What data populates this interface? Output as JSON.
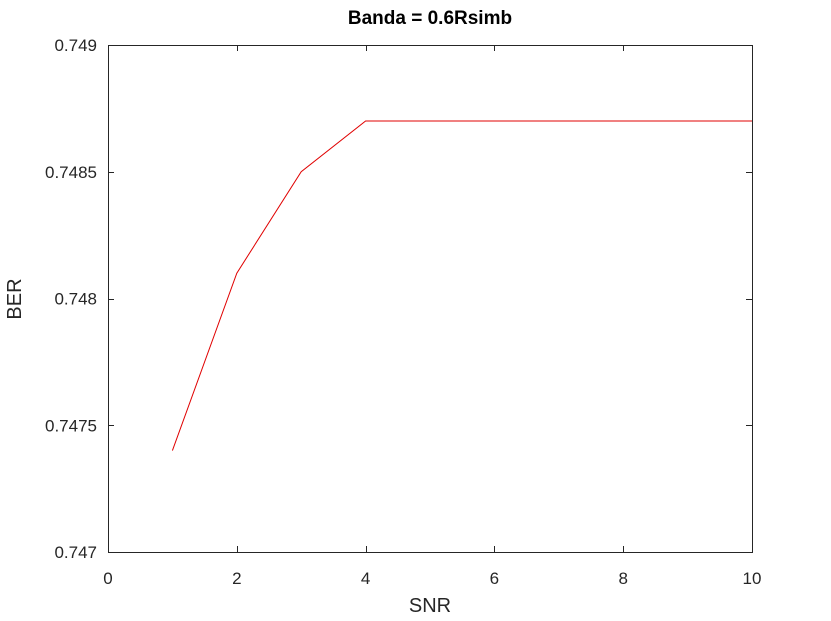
{
  "chart_data": {
    "type": "line",
    "title": "Banda = 0.6Rsimb",
    "xlabel": "SNR",
    "ylabel": "BER",
    "xlim": [
      0,
      10
    ],
    "ylim": [
      0.747,
      0.749
    ],
    "xticks": [
      0,
      2,
      4,
      6,
      8,
      10
    ],
    "xtick_labels": [
      "0",
      "2",
      "4",
      "6",
      "8",
      "10"
    ],
    "yticks": [
      0.747,
      0.7475,
      0.748,
      0.7485,
      0.749
    ],
    "ytick_labels": [
      "0.747",
      "0.7475",
      "0.748",
      "0.7485",
      "0.749"
    ],
    "grid": false,
    "series": [
      {
        "color": "#e00000",
        "x": [
          1,
          2,
          3,
          4,
          5,
          6,
          7,
          8,
          9,
          10
        ],
        "y": [
          0.7474,
          0.7481,
          0.7485,
          0.7487,
          0.7487,
          0.7487,
          0.7487,
          0.7487,
          0.7487,
          0.7487
        ]
      }
    ]
  }
}
